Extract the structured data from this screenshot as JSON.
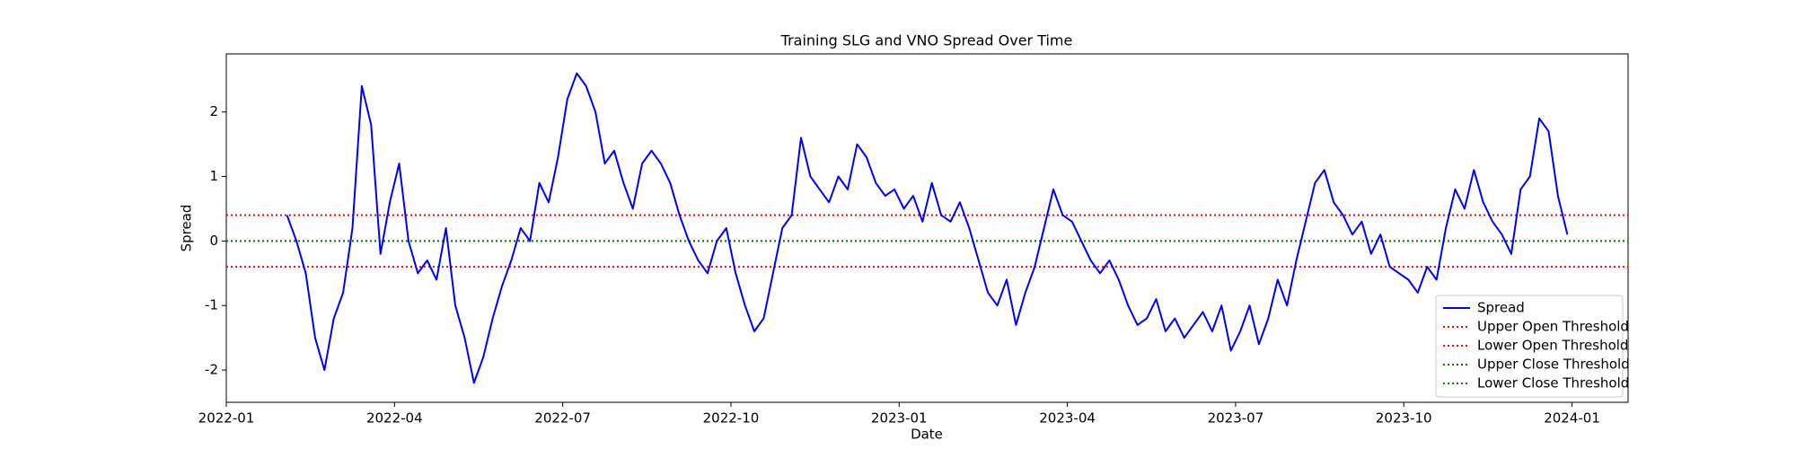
{
  "chart_data": {
    "type": "line",
    "title": "Training SLG and VNO Spread Over Time",
    "xlabel": "Date",
    "ylabel": "Spread",
    "x": [
      "2022-02",
      "2022-02",
      "2022-02",
      "2022-02",
      "2022-02",
      "2022-02",
      "2022-03",
      "2022-03",
      "2022-03",
      "2022-03",
      "2022-03",
      "2022-03",
      "2022-04",
      "2022-04",
      "2022-04",
      "2022-04",
      "2022-04",
      "2022-04",
      "2022-05",
      "2022-05",
      "2022-05",
      "2022-05",
      "2022-05",
      "2022-05",
      "2022-06",
      "2022-06",
      "2022-06",
      "2022-06",
      "2022-06",
      "2022-06",
      "2022-07",
      "2022-07",
      "2022-07",
      "2022-07",
      "2022-07",
      "2022-07",
      "2022-08",
      "2022-08",
      "2022-08",
      "2022-08",
      "2022-08",
      "2022-08",
      "2022-09",
      "2022-09",
      "2022-09",
      "2022-09",
      "2022-09",
      "2022-09",
      "2022-10",
      "2022-10",
      "2022-10",
      "2022-10",
      "2022-10",
      "2022-10",
      "2022-11",
      "2022-11",
      "2022-11",
      "2022-11",
      "2022-11",
      "2022-11",
      "2022-12",
      "2022-12",
      "2022-12",
      "2022-12",
      "2022-12",
      "2022-12",
      "2023-01",
      "2023-01",
      "2023-01",
      "2023-01",
      "2023-01",
      "2023-01",
      "2023-02",
      "2023-02",
      "2023-02",
      "2023-02",
      "2023-02",
      "2023-02",
      "2023-03",
      "2023-03",
      "2023-03",
      "2023-03",
      "2023-03",
      "2023-03",
      "2023-04",
      "2023-04",
      "2023-04",
      "2023-04",
      "2023-04",
      "2023-04",
      "2023-05",
      "2023-05",
      "2023-05",
      "2023-05",
      "2023-05",
      "2023-05",
      "2023-06",
      "2023-06",
      "2023-06",
      "2023-06",
      "2023-06",
      "2023-06",
      "2023-07",
      "2023-07",
      "2023-07",
      "2023-07",
      "2023-07",
      "2023-07",
      "2023-08",
      "2023-08",
      "2023-08",
      "2023-08",
      "2023-08",
      "2023-08",
      "2023-09",
      "2023-09",
      "2023-09",
      "2023-09",
      "2023-09",
      "2023-09",
      "2023-10",
      "2023-10",
      "2023-10",
      "2023-10",
      "2023-10",
      "2023-10",
      "2023-11",
      "2023-11",
      "2023-11",
      "2023-11",
      "2023-11",
      "2023-11",
      "2023-12",
      "2023-12",
      "2023-12",
      "2023-12",
      "2023-12",
      "2023-12"
    ],
    "series": [
      {
        "name": "Spread",
        "color": "#0000ff",
        "values": [
          0.4,
          0.0,
          -0.5,
          -1.5,
          -2.0,
          -1.2,
          -0.8,
          0.2,
          2.4,
          1.8,
          -0.2,
          0.6,
          1.2,
          0.0,
          -0.5,
          -0.3,
          -0.6,
          0.2,
          -1.0,
          -1.5,
          -2.2,
          -1.8,
          -1.2,
          -0.7,
          -0.3,
          0.2,
          0.0,
          0.9,
          0.6,
          1.3,
          2.2,
          2.6,
          2.4,
          2.0,
          1.2,
          1.4,
          0.9,
          0.5,
          1.2,
          1.4,
          1.2,
          0.9,
          0.4,
          0.0,
          -0.3,
          -0.5,
          0.0,
          0.2,
          -0.5,
          -1.0,
          -1.4,
          -1.2,
          -0.5,
          0.2,
          0.4,
          1.6,
          1.0,
          0.8,
          0.6,
          1.0,
          0.8,
          1.5,
          1.3,
          0.9,
          0.7,
          0.8,
          0.5,
          0.7,
          0.3,
          0.9,
          0.4,
          0.3,
          0.6,
          0.2,
          -0.3,
          -0.8,
          -1.0,
          -0.6,
          -1.3,
          -0.8,
          -0.4,
          0.2,
          0.8,
          0.4,
          0.3,
          0.0,
          -0.3,
          -0.5,
          -0.3,
          -0.6,
          -1.0,
          -1.3,
          -1.2,
          -0.9,
          -1.4,
          -1.2,
          -1.5,
          -1.3,
          -1.1,
          -1.4,
          -1.0,
          -1.7,
          -1.4,
          -1.0,
          -1.6,
          -1.2,
          -0.6,
          -1.0,
          -0.3,
          0.3,
          0.9,
          1.1,
          0.6,
          0.4,
          0.1,
          0.3,
          -0.2,
          0.1,
          -0.4,
          -0.5,
          -0.6,
          -0.8,
          -0.4,
          -0.6,
          0.2,
          0.8,
          0.5,
          1.1,
          0.6,
          0.3,
          0.1,
          -0.2,
          0.8,
          1.0,
          1.9,
          1.7,
          0.7,
          0.1
        ]
      }
    ],
    "thresholds": [
      {
        "name": "Upper Open Threshold",
        "color": "#ff0000",
        "value": 0.4
      },
      {
        "name": "Lower Open Threshold",
        "color": "#ff0000",
        "value": -0.4
      },
      {
        "name": "Upper Close Threshold",
        "color": "#008000",
        "value": 0
      },
      {
        "name": "Lower Close Threshold",
        "color": "#008000",
        "value": 0
      }
    ],
    "xlim": [
      "2022-01",
      "2024-02"
    ],
    "xticks": [
      "2022-01",
      "2022-04",
      "2022-07",
      "2022-10",
      "2023-01",
      "2023-04",
      "2023-07",
      "2023-10",
      "2024-01"
    ],
    "ylim": [
      -2.5,
      2.9
    ],
    "yticks": [
      -2,
      -1,
      0,
      1,
      2
    ],
    "legend": "lower right"
  }
}
